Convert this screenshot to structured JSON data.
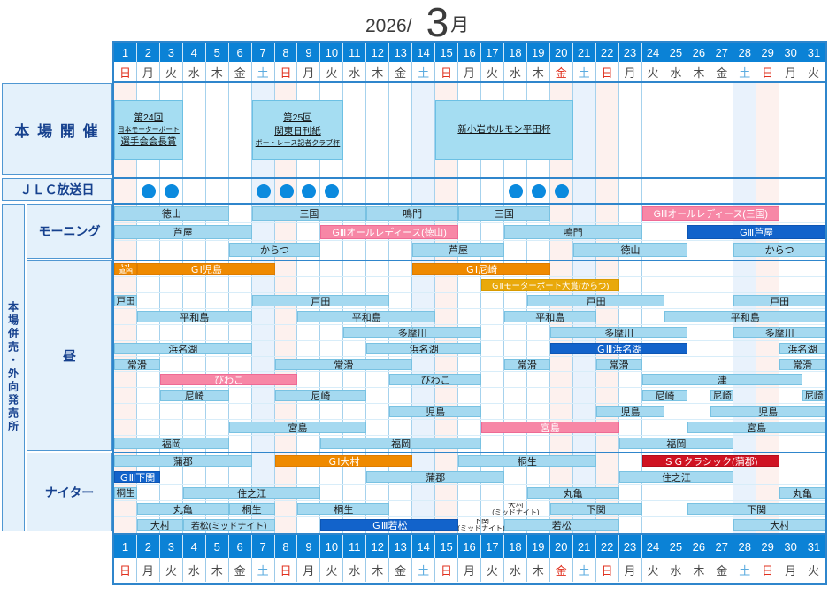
{
  "title": {
    "year": "2026/",
    "month": "3",
    "month_suffix": "月"
  },
  "colors": {
    "header_blue": "#0b82d6",
    "grid_border": "#2f86cc",
    "label_bg": "#e4f1fb",
    "label_text": "#16418e",
    "sunday_tint": "#fdf1ee",
    "saturday_tint": "#e9f2fc",
    "bar_light_blue": "#a5d9f0",
    "bar_pink": "#f787a6",
    "bar_orange": "#ef8a00",
    "bar_gold": "#e9a90b",
    "bar_dark_blue": "#1263cb",
    "bar_red": "#cf1222",
    "jlc_dot": "#0b8ade",
    "sunday_text": "#e0301e",
    "saturday_text": "#5aabdf",
    "weekday_text": "#4a4a4a"
  },
  "left_panel": {
    "honjo": "本 場 開 催",
    "jlc": "ＪＬＣ放送日",
    "vertical": "本場併売・外向発売所",
    "morning": "モーニング",
    "day": "昼",
    "nighter": "ナイター"
  },
  "days": {
    "numbers": [
      1,
      2,
      3,
      4,
      5,
      6,
      7,
      8,
      9,
      10,
      11,
      12,
      13,
      14,
      15,
      16,
      17,
      18,
      19,
      20,
      21,
      22,
      23,
      24,
      25,
      26,
      27,
      28,
      29,
      30,
      31
    ],
    "dow": [
      "日",
      "月",
      "火",
      "水",
      "木",
      "金",
      "土",
      "日",
      "月",
      "火",
      "水",
      "木",
      "金",
      "土",
      "日",
      "月",
      "火",
      "水",
      "木",
      "金",
      "土",
      "日",
      "月",
      "火",
      "水",
      "木",
      "金",
      "土",
      "日",
      "月",
      "火"
    ],
    "types": [
      "sun",
      "wd",
      "wd",
      "wd",
      "wd",
      "wd",
      "sat",
      "sun",
      "wd",
      "wd",
      "wd",
      "wd",
      "wd",
      "sat",
      "sun",
      "wd",
      "wd",
      "wd",
      "wd",
      "hol",
      "sat",
      "sun",
      "wd",
      "wd",
      "wd",
      "wd",
      "wd",
      "sat",
      "sun",
      "wd",
      "wd"
    ]
  },
  "honjo_events": [
    {
      "start": 1,
      "end": 3,
      "lines": [
        "第24回",
        "日本モーターボート",
        "選手会会長賞"
      ]
    },
    {
      "start": 7,
      "end": 10,
      "lines": [
        "第25回",
        "関東日刊紙",
        "ボートレース記者クラブ杯"
      ]
    },
    {
      "start": 15,
      "end": 20,
      "lines": [
        "新小岩ホルモン平田杯"
      ]
    }
  ],
  "jlc_days": [
    2,
    3,
    7,
    8,
    9,
    10,
    18,
    19,
    20
  ],
  "sections": {
    "morning": {
      "rows": [
        [
          {
            "l": "徳山",
            "s": 1,
            "e": 5,
            "c": "lb"
          },
          {
            "l": "三国",
            "s": 7,
            "e": 11,
            "c": "lb"
          },
          {
            "l": "鳴門",
            "s": 12,
            "e": 15,
            "c": "lb"
          },
          {
            "l": "三国",
            "s": 16,
            "e": 19,
            "c": "lb"
          },
          {
            "l": "GⅢオールレディース(三国)",
            "s": 24,
            "e": 29,
            "c": "pink"
          }
        ],
        [
          {
            "l": "芦屋",
            "s": 1,
            "e": 6,
            "c": "lb"
          },
          {
            "l": "GⅢオールレディース(徳山)",
            "s": 10,
            "e": 15,
            "c": "pink"
          },
          {
            "l": "鳴門",
            "s": 18,
            "e": 23,
            "c": "lb"
          },
          {
            "l": "GⅢ芦屋",
            "s": 26,
            "e": 31,
            "c": "dblue"
          }
        ],
        [
          {
            "l": "からつ",
            "s": 6,
            "e": 9,
            "c": "lb"
          },
          {
            "l": "芦屋",
            "s": 14,
            "e": 17,
            "c": "lb"
          },
          {
            "l": "徳山",
            "s": 21,
            "e": 25,
            "c": "lb"
          },
          {
            "l": "からつ",
            "s": 28,
            "e": 31,
            "c": "lb"
          }
        ]
      ]
    },
    "day": {
      "rows": [
        [
          {
            "l": "GⅠ鳴門",
            "lines": [
              "GⅠ",
              "鳴門"
            ],
            "s": 1,
            "e": 1,
            "c": "orange"
          },
          {
            "l": "ＧⅠ児島",
            "s": 2,
            "e": 7,
            "c": "orange"
          },
          {
            "l": "ＧⅠ尼崎",
            "s": 14,
            "e": 19,
            "c": "orange"
          }
        ],
        [
          {
            "l": "ＧⅡモーターボート大賞(からつ)",
            "s": 17,
            "e": 22,
            "c": "gold"
          }
        ],
        [
          {
            "l": "戸田",
            "s": 1,
            "e": 1,
            "c": "lb"
          },
          {
            "l": "戸田",
            "s": 7,
            "e": 12,
            "c": "lb"
          },
          {
            "l": "戸田",
            "s": 19,
            "e": 24,
            "c": "lb"
          },
          {
            "l": "戸田",
            "s": 28,
            "e": 31,
            "c": "lb"
          }
        ],
        [
          {
            "l": "平和島",
            "s": 2,
            "e": 6,
            "c": "lb"
          },
          {
            "l": "平和島",
            "s": 9,
            "e": 14,
            "c": "lb"
          },
          {
            "l": "平和島",
            "s": 18,
            "e": 21,
            "c": "lb"
          },
          {
            "l": "平和島",
            "s": 25,
            "e": 31,
            "c": "lb"
          }
        ],
        [
          {
            "l": "多摩川",
            "s": 11,
            "e": 16,
            "c": "lb"
          },
          {
            "l": "多摩川",
            "s": 20,
            "e": 25,
            "c": "lb"
          },
          {
            "l": "多摩川",
            "s": 28,
            "e": 31,
            "c": "lb"
          }
        ],
        [
          {
            "l": "浜名湖",
            "s": 1,
            "e": 6,
            "c": "lb"
          },
          {
            "l": "浜名湖",
            "s": 12,
            "e": 16,
            "c": "lb"
          },
          {
            "l": "ＧⅢ浜名湖",
            "s": 20,
            "e": 25,
            "c": "dblue"
          },
          {
            "l": "浜名湖",
            "s": 30,
            "e": 31,
            "c": "lb"
          }
        ],
        [
          {
            "l": "常滑",
            "s": 1,
            "e": 2,
            "c": "lb"
          },
          {
            "l": "常滑",
            "s": 8,
            "e": 13,
            "c": "lb"
          },
          {
            "l": "常滑",
            "s": 18,
            "e": 19,
            "c": "lb"
          },
          {
            "l": "常滑",
            "s": 22,
            "e": 23,
            "c": "lb"
          },
          {
            "l": "常滑",
            "s": 30,
            "e": 31,
            "c": "lb"
          }
        ],
        [
          {
            "l": "びわこ",
            "s": 3,
            "e": 8,
            "c": "pink"
          },
          {
            "l": "びわこ",
            "s": 13,
            "e": 16,
            "c": "lb"
          },
          {
            "l": "津",
            "s": 24,
            "e": 30,
            "c": "lb"
          }
        ],
        [
          {
            "l": "尼崎",
            "s": 3,
            "e": 5,
            "c": "lb"
          },
          {
            "l": "尼崎",
            "s": 8,
            "e": 11,
            "c": "lb"
          },
          {
            "l": "尼崎",
            "s": 24,
            "e": 25,
            "c": "lb"
          },
          {
            "l": "尼崎",
            "s": 27,
            "e": 27,
            "c": "lb"
          },
          {
            "l": "尼崎",
            "s": 31,
            "e": 31,
            "c": "lb"
          }
        ],
        [
          {
            "l": "児島",
            "s": 13,
            "e": 16,
            "c": "lb"
          },
          {
            "l": "児島",
            "s": 22,
            "e": 24,
            "c": "lb"
          },
          {
            "l": "児島",
            "s": 27,
            "e": 31,
            "c": "lb"
          }
        ],
        [
          {
            "l": "宮島",
            "s": 6,
            "e": 11,
            "c": "lb"
          },
          {
            "l": "宮島",
            "s": 17,
            "e": 22,
            "c": "pink"
          },
          {
            "l": "宮島",
            "s": 26,
            "e": 31,
            "c": "lb"
          }
        ],
        [
          {
            "l": "福岡",
            "s": 1,
            "e": 5,
            "c": "lb"
          },
          {
            "l": "福岡",
            "s": 10,
            "e": 16,
            "c": "lb"
          },
          {
            "l": "福岡",
            "s": 23,
            "e": 27,
            "c": "lb"
          }
        ]
      ]
    },
    "nighter": {
      "rows": [
        [
          {
            "l": "蒲郡",
            "s": 1,
            "e": 6,
            "c": "lb"
          },
          {
            "l": "ＧⅠ大村",
            "s": 8,
            "e": 13,
            "c": "orange"
          },
          {
            "l": "桐生",
            "s": 16,
            "e": 21,
            "c": "lb"
          },
          {
            "l": "ＳＧクラシック(蒲郡)",
            "s": 24,
            "e": 29,
            "c": "red"
          }
        ],
        [
          {
            "l": "ＧⅢ下関",
            "s": 1,
            "e": 2,
            "c": "dblue"
          },
          {
            "l": "蒲郡",
            "s": 12,
            "e": 17,
            "c": "lb"
          },
          {
            "l": "住之江",
            "s": 23,
            "e": 27,
            "c": "lb"
          }
        ],
        [
          {
            "l": "桐生",
            "s": 1,
            "e": 1,
            "c": "lb"
          },
          {
            "l": "住之江",
            "s": 4,
            "e": 9,
            "c": "lb"
          },
          {
            "l": "丸亀",
            "s": 19,
            "e": 22,
            "c": "lb"
          },
          {
            "l": "丸亀",
            "s": 30,
            "e": 31,
            "c": "lb"
          }
        ],
        [
          {
            "l": "丸亀",
            "s": 2,
            "e": 5,
            "c": "lb"
          },
          {
            "l": "桐生",
            "s": 6,
            "e": 7,
            "c": "lb"
          },
          {
            "l": "桐生",
            "s": 9,
            "e": 12,
            "c": "lb"
          },
          {
            "l": "大村(ミッドナイト)",
            "lines": [
              "大村",
              "(ミッドナイト)"
            ],
            "s": 17,
            "e": 19,
            "c": "text"
          },
          {
            "l": "下関",
            "s": 20,
            "e": 23,
            "c": "lb"
          },
          {
            "l": "下関",
            "s": 26,
            "e": 31,
            "c": "lb"
          }
        ],
        [
          {
            "l": "大村",
            "s": 2,
            "e": 3,
            "c": "lb"
          },
          {
            "l": "若松(ミッドナイト)",
            "s": 4,
            "e": 7,
            "c": "lb"
          },
          {
            "l": "ＧⅢ若松",
            "s": 10,
            "e": 15,
            "c": "dblue"
          },
          {
            "l": "下関(ミッドナイト)",
            "lines": [
              "下関",
              "(ミッドナイト)"
            ],
            "s": 16,
            "e": 17,
            "c": "text"
          },
          {
            "l": "若松",
            "s": 18,
            "e": 22,
            "c": "lb"
          },
          {
            "l": "大村",
            "s": 28,
            "e": 31,
            "c": "lb"
          }
        ]
      ]
    }
  }
}
